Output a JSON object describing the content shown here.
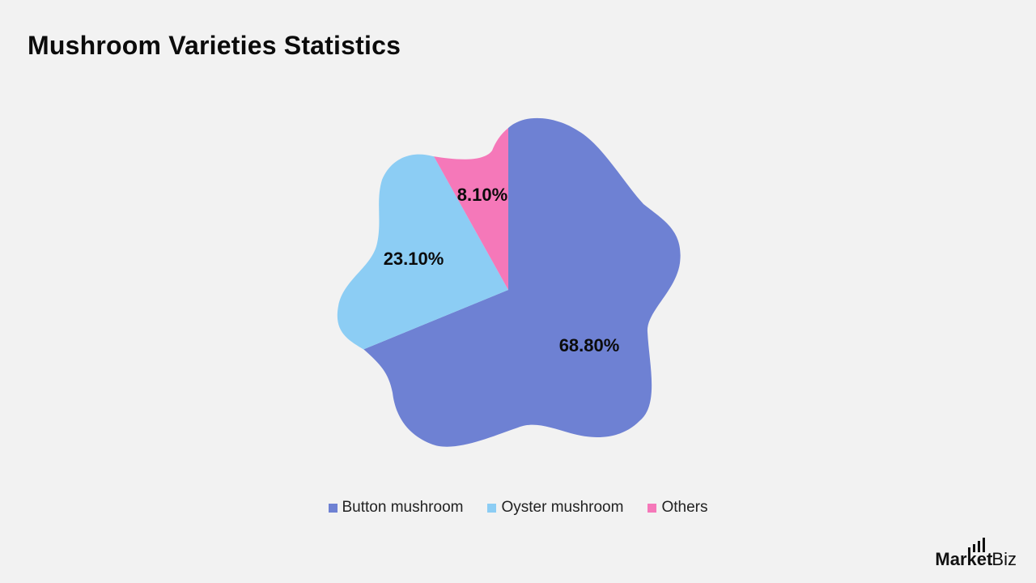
{
  "title": "Mushroom Varieties Statistics",
  "chart_data": {
    "type": "pie",
    "title": "Mushroom Varieties Statistics",
    "legend_position": "bottom",
    "slices": [
      {
        "name": "Button mushroom",
        "value": 68.8,
        "label": "68.80%",
        "color": "#6e81d3"
      },
      {
        "name": "Oyster mushroom",
        "value": 23.1,
        "label": "23.10%",
        "color": "#8ccdf4"
      },
      {
        "name": "Others",
        "value": 8.1,
        "label": "8.10%",
        "color": "#f578b9"
      }
    ]
  },
  "brand": {
    "name_strong": "Market",
    "name_rest": ".Biz"
  }
}
